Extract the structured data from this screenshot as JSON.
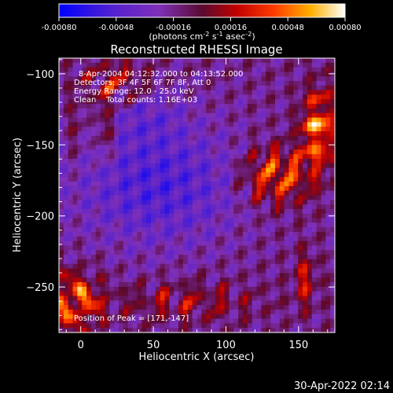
{
  "chart_data": {
    "type": "heatmap",
    "title": "Reconstructed RHESSI Image",
    "xlabel": "Heliocentric X (arcsec)",
    "ylabel": "Heliocentric Y (arcsec)",
    "xlim": [
      -15,
      175
    ],
    "ylim": [
      -282,
      -89
    ],
    "xticks": [
      0,
      50,
      100,
      150
    ],
    "yticks": [
      -100,
      -150,
      -200,
      -250
    ],
    "colorbar": {
      "range": [
        -0.0008,
        0.0008
      ],
      "ticks": [
        "-0.00080",
        "-0.00048",
        "-0.00016",
        "0.00016",
        "0.00048",
        "0.00080"
      ],
      "unit_main": "(photons cm",
      "unit_exp1": "-2",
      "unit_mid": " s",
      "unit_exp2": "-1",
      "unit_tail": " asec",
      "unit_exp3": "-2",
      "unit_close": ")"
    },
    "annotations": [
      "8-Apr-2004 04:12:32.000 to 04:13:52.000",
      "Detectors: 3F 4F 5F 6F 7F 8F, Att 0",
      "Energy Range: 12.0 - 25.0 keV",
      "Clean    Total counts: 1.16E+03"
    ],
    "peak_label": "Position of Peak = [171,-147]",
    "peak": [
      171,
      -147
    ]
  },
  "footer": {
    "timestamp": "30-Apr-2022 02:14"
  }
}
